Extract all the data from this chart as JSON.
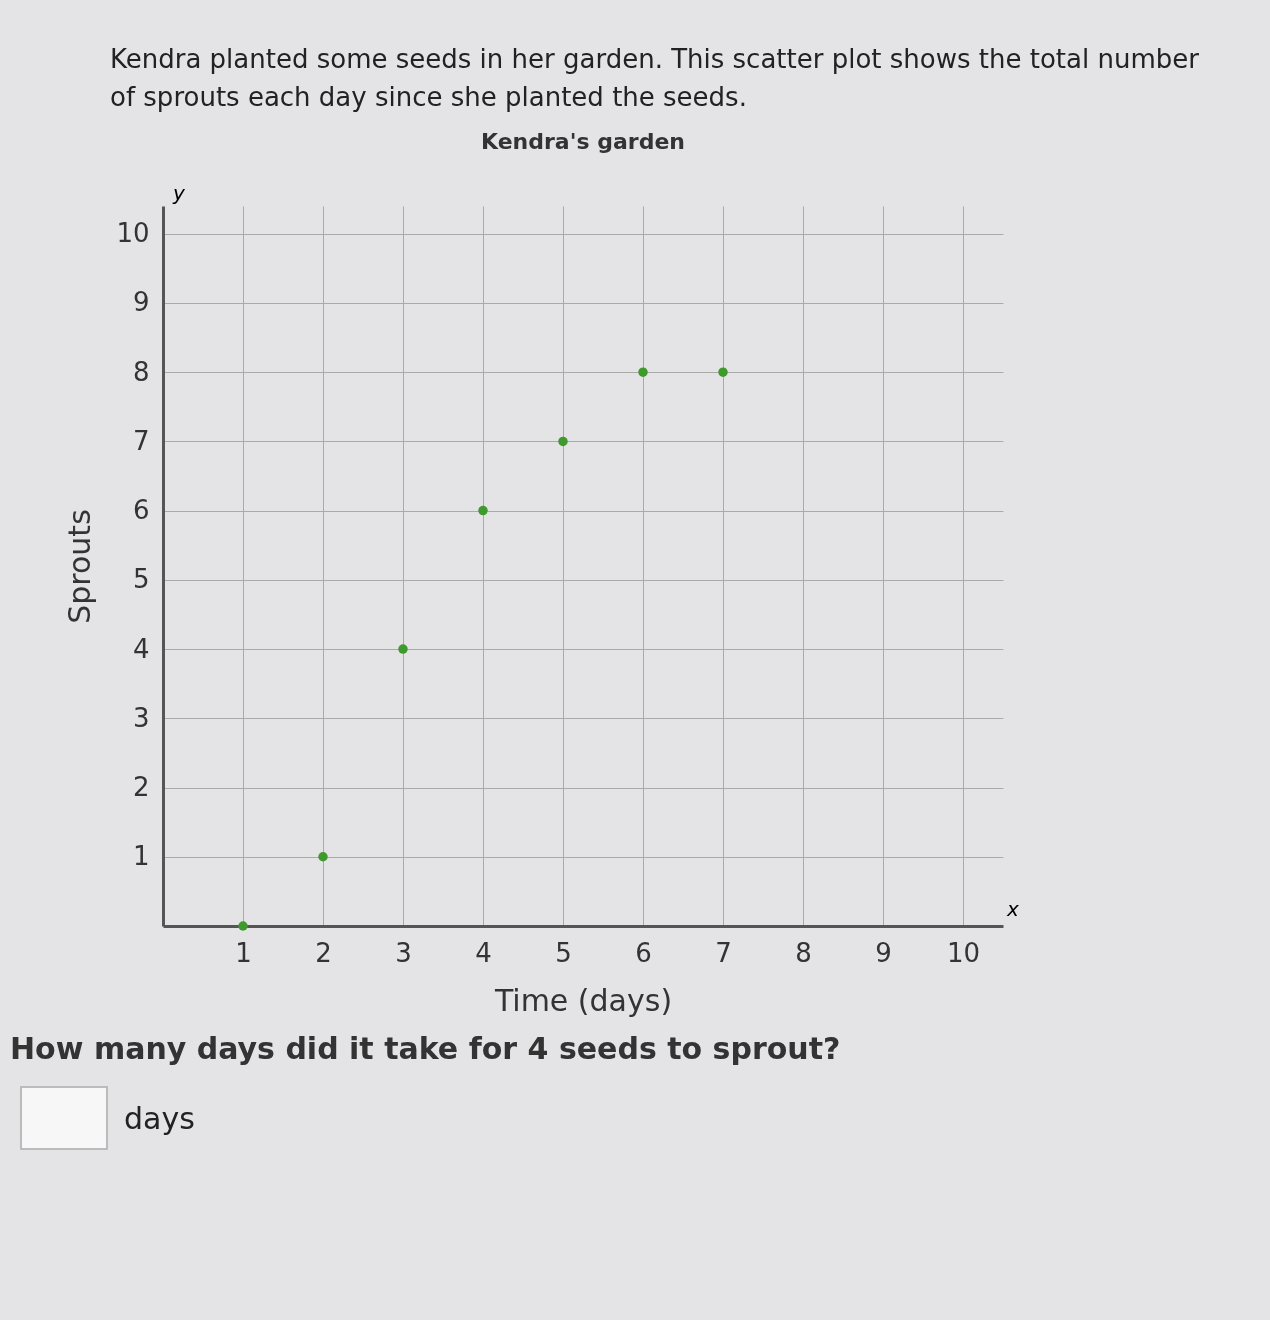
{
  "chart_data": {
    "type": "scatter",
    "title": "Kendra's garden",
    "xlabel": "Time (days)",
    "ylabel": "Sprouts",
    "annotations": [
      "Kendra planted some seeds in her garden. This scatter plot shows the total number of sprouts each day since she planted the seeds.",
      "y",
      "x",
      "How many days did it take for 4 seeds to sprout?",
      "days"
    ],
    "x": [
      1,
      2,
      3,
      4,
      5,
      6,
      7
    ],
    "values": [
      0,
      1,
      4,
      6,
      7,
      8,
      8
    ],
    "color": "#3f9a2e",
    "xlim": [
      0,
      10.5
    ],
    "ylim": [
      0,
      10.4
    ],
    "xticks": [
      1,
      2,
      3,
      4,
      5,
      6,
      7,
      8,
      9,
      10
    ],
    "yticks": [
      1,
      2,
      3,
      4,
      5,
      6,
      7,
      8,
      9,
      10
    ],
    "grid": true,
    "marker": "circle"
  }
}
